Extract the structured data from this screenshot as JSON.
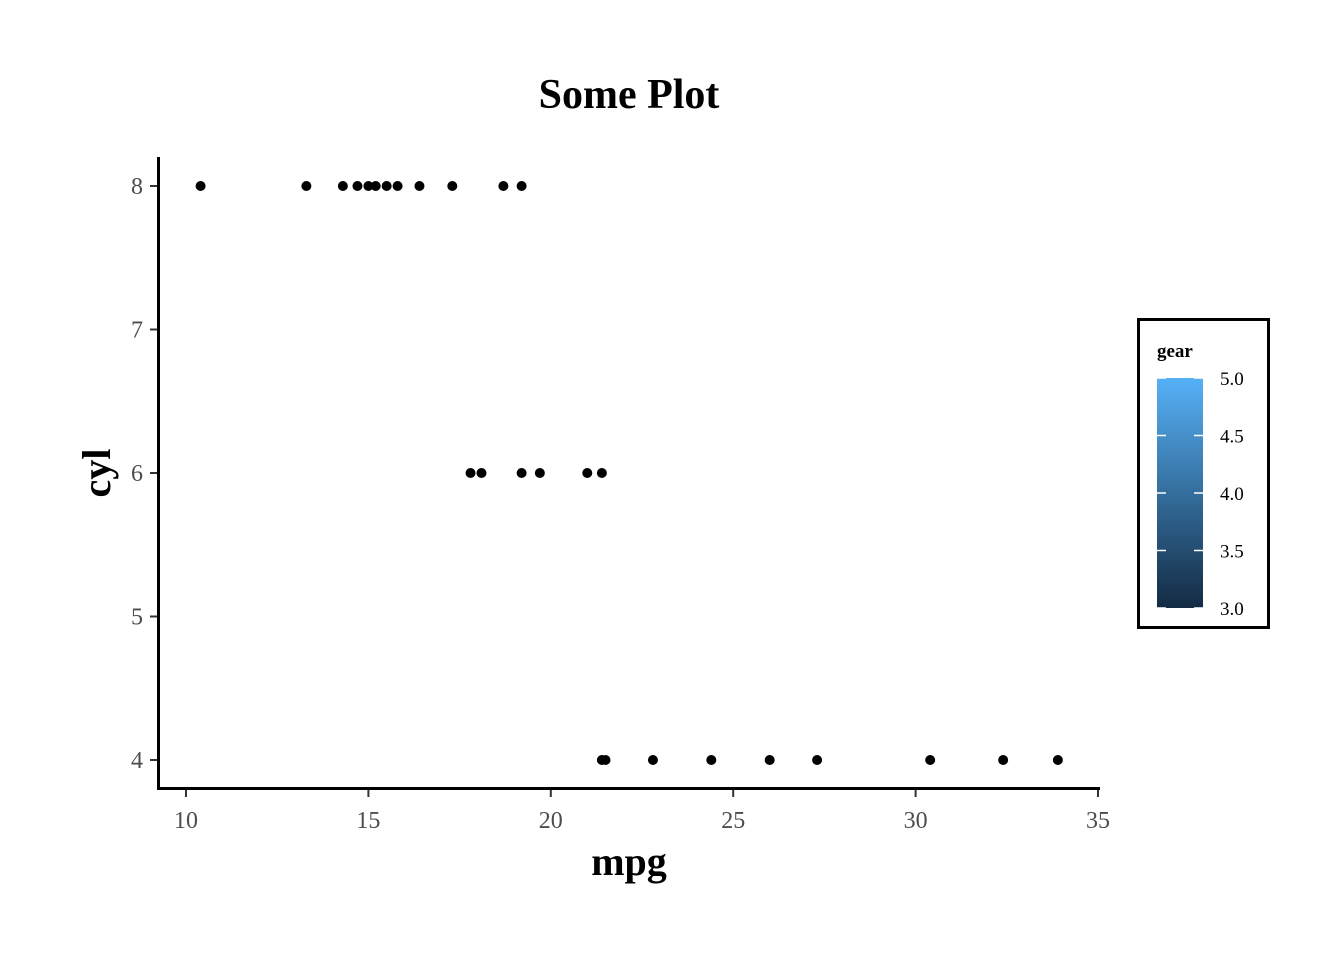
{
  "chart_data": {
    "type": "scatter",
    "title": "Some Plot",
    "xlabel": "mpg",
    "ylabel": "cyl",
    "xlim": [
      9.3,
      35
    ],
    "ylim": [
      3.8,
      8.2
    ],
    "xticks": [
      10,
      15,
      20,
      25,
      30,
      35
    ],
    "yticks": [
      4,
      5,
      6,
      7,
      8
    ],
    "grid": false,
    "point_color": "#000000",
    "legend": {
      "title": "gear",
      "placement": "right",
      "min": 3.0,
      "max": 5.0,
      "ticks": [
        "3.0",
        "3.5",
        "4.0",
        "4.5",
        "5.0"
      ],
      "low_color": "#132B43",
      "high_color": "#56B1F7"
    },
    "points": [
      {
        "x": 10.4,
        "y": 8
      },
      {
        "x": 13.3,
        "y": 8
      },
      {
        "x": 14.3,
        "y": 8
      },
      {
        "x": 14.7,
        "y": 8
      },
      {
        "x": 15.0,
        "y": 8
      },
      {
        "x": 15.2,
        "y": 8
      },
      {
        "x": 15.5,
        "y": 8
      },
      {
        "x": 15.8,
        "y": 8
      },
      {
        "x": 16.4,
        "y": 8
      },
      {
        "x": 17.3,
        "y": 8
      },
      {
        "x": 18.7,
        "y": 8
      },
      {
        "x": 19.2,
        "y": 8
      },
      {
        "x": 17.8,
        "y": 6
      },
      {
        "x": 18.1,
        "y": 6
      },
      {
        "x": 19.2,
        "y": 6
      },
      {
        "x": 19.7,
        "y": 6
      },
      {
        "x": 21.0,
        "y": 6
      },
      {
        "x": 21.4,
        "y": 6
      },
      {
        "x": 21.4,
        "y": 4
      },
      {
        "x": 21.5,
        "y": 4
      },
      {
        "x": 22.8,
        "y": 4
      },
      {
        "x": 24.4,
        "y": 4
      },
      {
        "x": 26.0,
        "y": 4
      },
      {
        "x": 27.3,
        "y": 4
      },
      {
        "x": 30.4,
        "y": 4
      },
      {
        "x": 32.4,
        "y": 4
      },
      {
        "x": 33.9,
        "y": 4
      }
    ]
  }
}
